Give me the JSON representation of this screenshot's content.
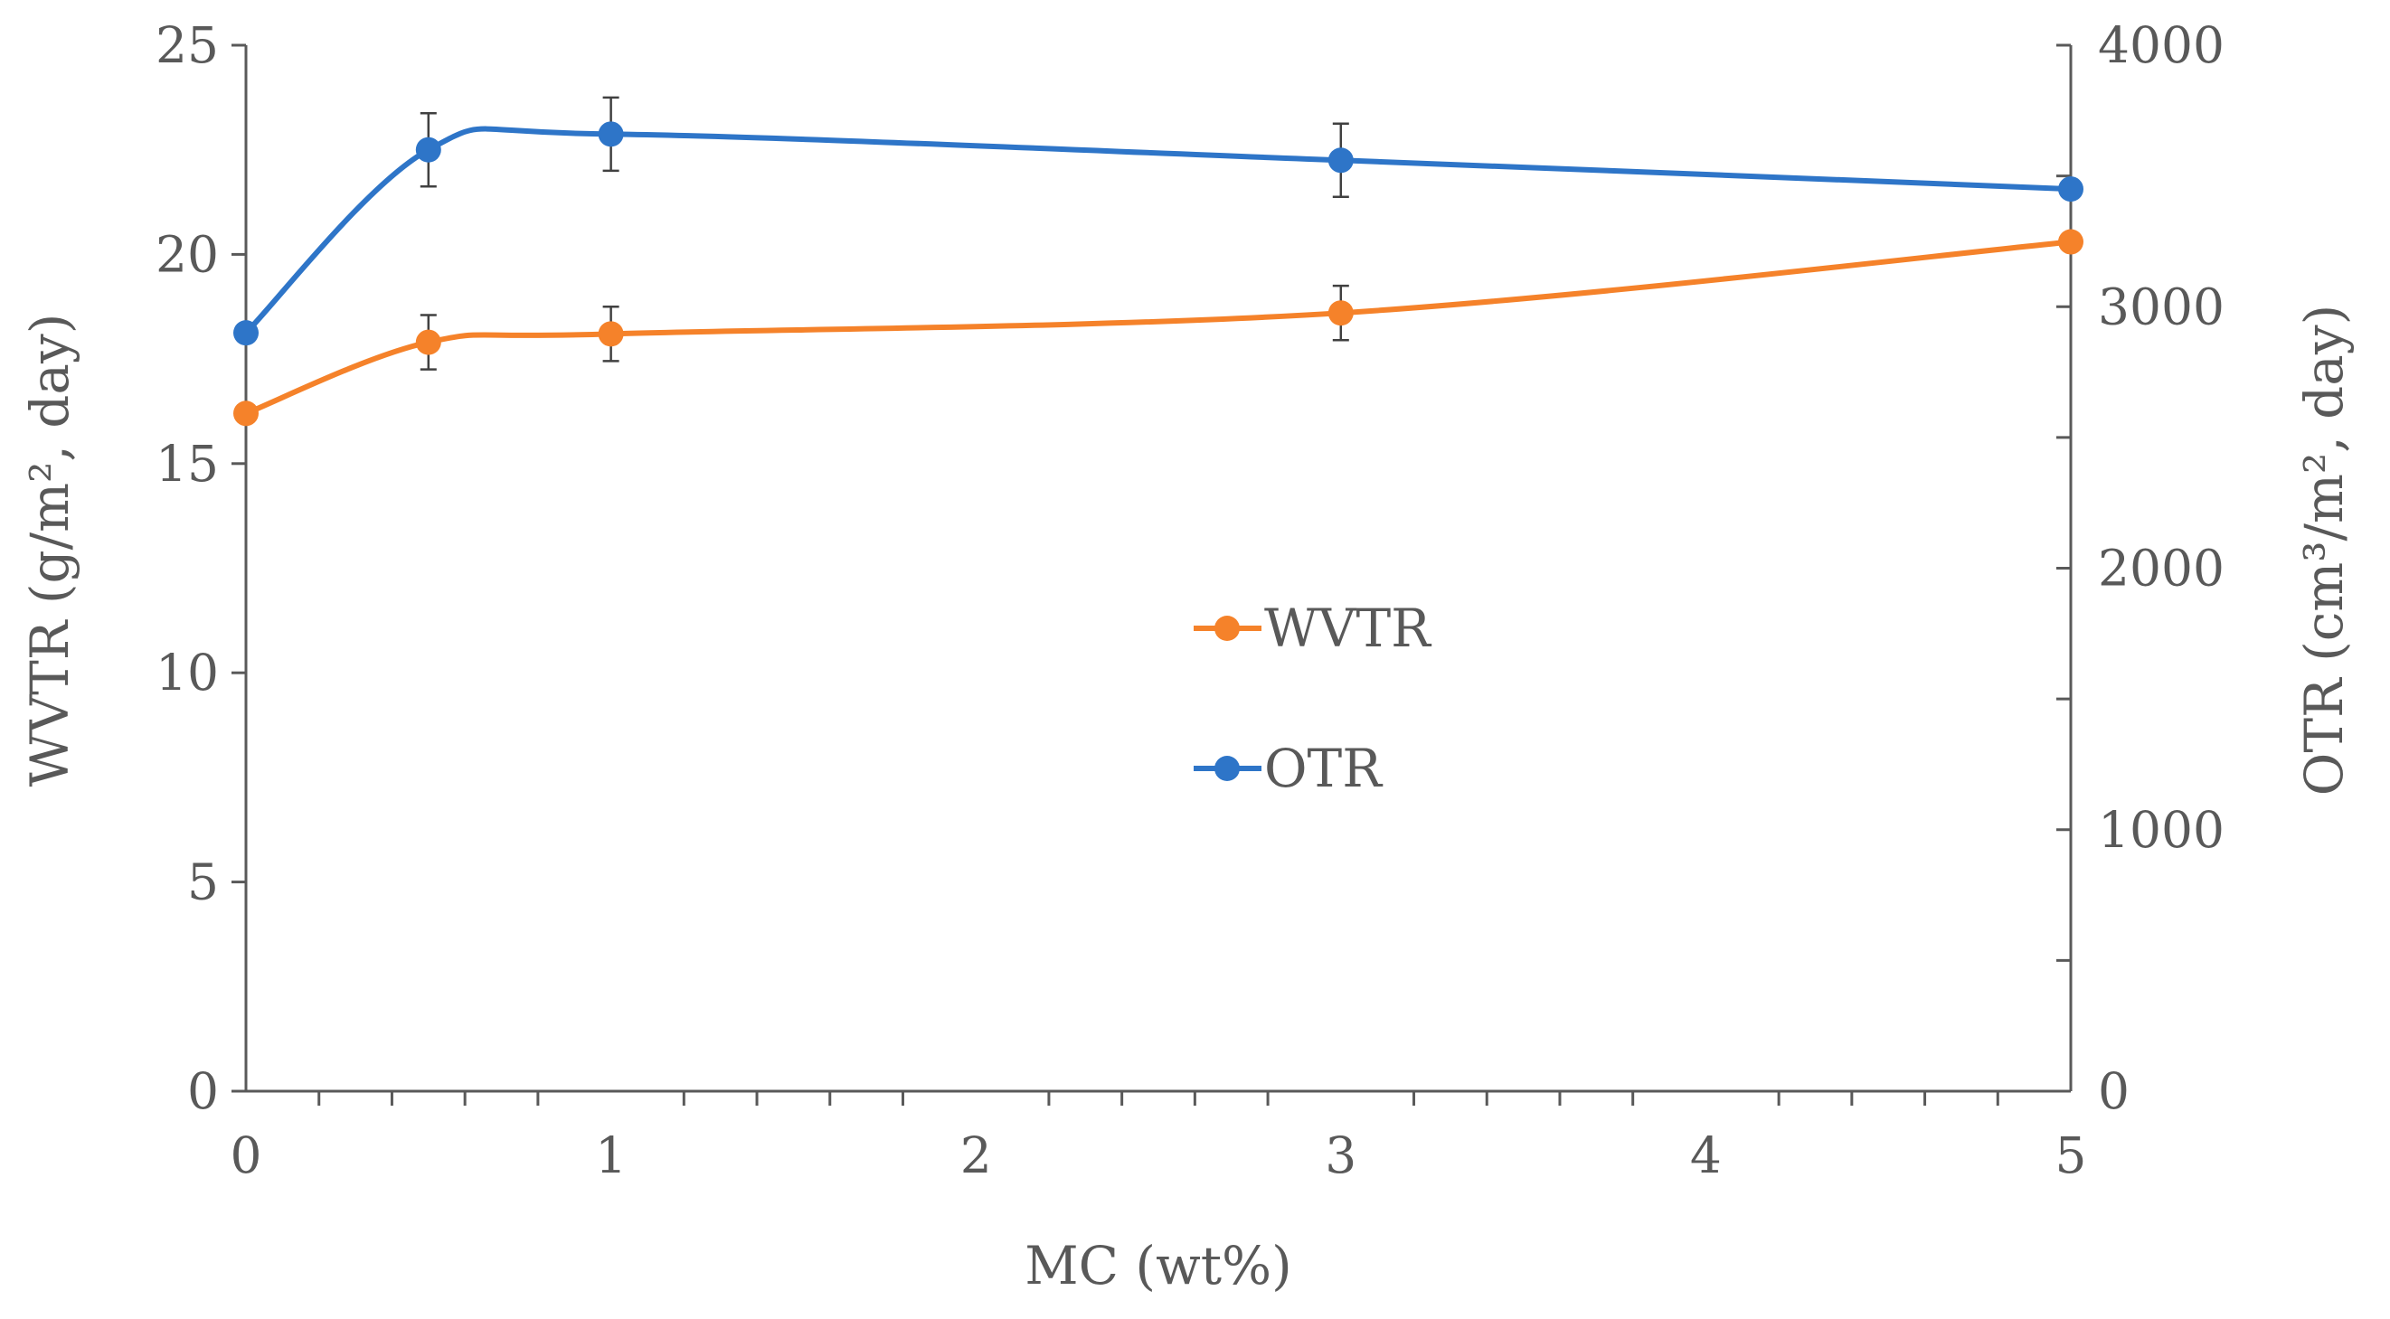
{
  "chart_data": {
    "type": "line",
    "title": "",
    "xlabel": "MC (wt%)",
    "ylabel_left": "WVTR (g/m², day)",
    "ylabel_right": "OTR (cm³/m², day)",
    "xlim": [
      0,
      5
    ],
    "ylim_left": [
      0,
      25
    ],
    "ylim_right": [
      0,
      4000
    ],
    "x_ticks": [
      0,
      1,
      2,
      3,
      4,
      5
    ],
    "y_left_ticks": [
      0,
      5,
      10,
      15,
      20,
      25
    ],
    "y_right_ticks": [
      0,
      1000,
      2000,
      3000,
      4000
    ],
    "grid": false,
    "legend_position": "center",
    "series": [
      {
        "name": "WVTR",
        "axis": "left",
        "color": "#F5822A",
        "x": [
          0,
          0.5,
          1,
          3,
          5
        ],
        "values": [
          16.2,
          17.9,
          18.1,
          18.6,
          20.3
        ],
        "error": [
          0,
          0.65,
          0.65,
          0.65,
          0
        ]
      },
      {
        "name": "OTR",
        "axis": "right",
        "color": "#2E75C8",
        "x": [
          0,
          0.5,
          1,
          3,
          5
        ],
        "values": [
          2900,
          3600,
          3660,
          3560,
          3450
        ],
        "error": [
          0,
          140,
          140,
          140,
          0
        ]
      }
    ]
  }
}
